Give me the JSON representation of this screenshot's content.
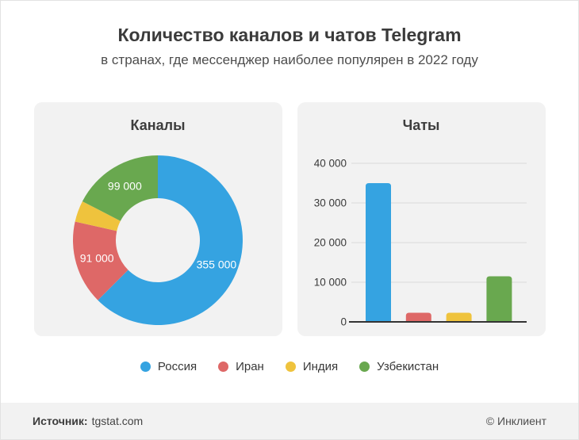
{
  "page": {
    "title": "Количество каналов и чатов Telegram",
    "subtitle": "в странах, где мессенджер наиболее популярен в 2022 году"
  },
  "panels": {
    "channels": {
      "title": "Каналы"
    },
    "chats": {
      "title": "Чаты"
    }
  },
  "legend": {
    "items": [
      {
        "label": "Россия",
        "color": "#35a3e1"
      },
      {
        "label": "Иран",
        "color": "#de6867"
      },
      {
        "label": "Индия",
        "color": "#efc33d"
      },
      {
        "label": "Узбекистан",
        "color": "#69a84f"
      }
    ]
  },
  "footer": {
    "source_label": "Источник:",
    "source_value": "tgstat.com",
    "copyright": "© Инклиент"
  },
  "chart_data": [
    {
      "id": "channels-donut",
      "type": "pie",
      "donut": true,
      "title": "Каналы",
      "categories": [
        "Россия",
        "Иран",
        "Индия",
        "Узбекистан"
      ],
      "values": [
        355000,
        91000,
        23000,
        99000
      ],
      "slice_labels": [
        "355 000",
        "91 000",
        "",
        "99 000"
      ],
      "colors": [
        "#35a3e1",
        "#de6867",
        "#efc33d",
        "#69a84f"
      ],
      "start_angle_deg": 0,
      "direction": "clockwise",
      "label_color": "#ffffff",
      "legend_position": "bottom"
    },
    {
      "id": "chats-bar",
      "type": "bar",
      "title": "Чаты",
      "categories": [
        "Россия",
        "Иран",
        "Индия",
        "Узбекистан"
      ],
      "values": [
        35000,
        2300,
        2300,
        11500
      ],
      "colors": [
        "#35a3e1",
        "#de6867",
        "#efc33d",
        "#69a84f"
      ],
      "ylim": [
        0,
        40000
      ],
      "yticks": [
        0,
        10000,
        20000,
        30000,
        40000
      ],
      "ytick_labels": [
        "0",
        "10 000",
        "20 000",
        "30 000",
        "40 000"
      ],
      "grid": true,
      "gridline_color": "#d9d9d9",
      "axis_color": "#333333",
      "legend_position": "bottom"
    }
  ]
}
